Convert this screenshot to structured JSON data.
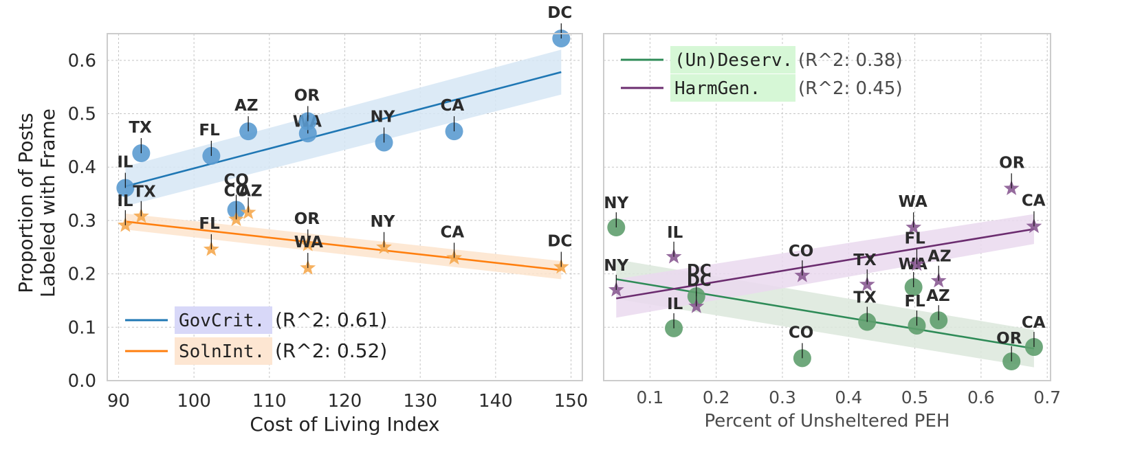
{
  "chart_data": [
    {
      "type": "scatter",
      "xlabel": "Cost of Living Index",
      "ylabel": "Proportion of Posts\nLabeled with Frame",
      "xlim": [
        88.5,
        151.5
      ],
      "ylim": [
        0.0,
        0.65
      ],
      "xticks": [
        "90",
        "100",
        "110",
        "120",
        "130",
        "140",
        "150"
      ],
      "yticks": [
        "0.0",
        "0.1",
        "0.2",
        "0.3",
        "0.4",
        "0.5",
        "0.6"
      ],
      "grid": true,
      "legend_position": "lower-left",
      "series": [
        {
          "name": "GovCrit.",
          "r2": "(R^2: 0.61)",
          "marker": "circle",
          "color": "#1f77b4",
          "point_color": "#5b9bd0",
          "band_color": "#d6e6f4",
          "label_bg": "#d8d8f8",
          "points": [
            {
              "label": "IL",
              "x": 90.9,
              "y": 0.361
            },
            {
              "label": "TX",
              "x": 93.0,
              "y": 0.426
            },
            {
              "label": "FL",
              "x": 102.3,
              "y": 0.421
            },
            {
              "label": "CO",
              "x": 105.6,
              "y": 0.32
            },
            {
              "label": "AZ",
              "x": 107.2,
              "y": 0.467
            },
            {
              "label": "WA",
              "x": 115.1,
              "y": 0.463
            },
            {
              "label": "OR",
              "x": 115.1,
              "y": 0.486
            },
            {
              "label": "NY",
              "x": 125.2,
              "y": 0.446
            },
            {
              "label": "CA",
              "x": 134.5,
              "y": 0.467
            },
            {
              "label": "DC",
              "x": 148.7,
              "y": 0.641
            }
          ],
          "fit": {
            "x": [
              90.9,
              148.7
            ],
            "y": [
              0.364,
              0.578
            ]
          },
          "band_lower": [
            0.327,
            0.536
          ],
          "band_upper": [
            0.401,
            0.62
          ]
        },
        {
          "name": "SolnInt.",
          "r2": "(R^2: 0.52)",
          "marker": "star",
          "color": "#ff7f0e",
          "point_color": "#f5a94f",
          "band_color": "#fde4cc",
          "label_bg": "#fde6d2",
          "points": [
            {
              "label": "IL",
              "x": 90.9,
              "y": 0.291
            },
            {
              "label": "TX",
              "x": 93.0,
              "y": 0.308
            },
            {
              "label": "FL",
              "x": 102.3,
              "y": 0.246
            },
            {
              "label": "CO",
              "x": 105.6,
              "y": 0.302
            },
            {
              "label": "AZ",
              "x": 107.2,
              "y": 0.315
            },
            {
              "label": "OR",
              "x": 115.1,
              "y": 0.255
            },
            {
              "label": "WA",
              "x": 115.1,
              "y": 0.211
            },
            {
              "label": "NY",
              "x": 125.2,
              "y": 0.25
            },
            {
              "label": "CA",
              "x": 134.5,
              "y": 0.23
            },
            {
              "label": "DC",
              "x": 148.7,
              "y": 0.213
            }
          ],
          "fit": {
            "x": [
              90.9,
              148.7
            ],
            "y": [
              0.298,
              0.207
            ]
          },
          "band_lower": [
            0.283,
            0.19
          ],
          "band_upper": [
            0.313,
            0.224
          ]
        }
      ]
    },
    {
      "type": "scatter",
      "xlabel": "Percent of Unsheltered PEH",
      "ylabel": "",
      "xlim": [
        0.03,
        0.705
      ],
      "ylim": [
        0.0,
        0.65
      ],
      "xticks": [
        "0.1",
        "0.2",
        "0.3",
        "0.4",
        "0.5",
        "0.6",
        "0.7"
      ],
      "grid": true,
      "legend_position": "upper-left",
      "series": [
        {
          "name": "(Un)Deserv.",
          "r2": "(R^2: 0.38)",
          "marker": "circle",
          "color": "#2e8b57",
          "point_color": "#5f9e6e",
          "band_color": "#dce8dc",
          "label_bg": "#d6f7d6",
          "points": [
            {
              "label": "NY",
              "x": 0.049,
              "y": 0.287
            },
            {
              "label": "IL",
              "x": 0.136,
              "y": 0.098
            },
            {
              "label": "DC",
              "x": 0.17,
              "y": 0.158
            },
            {
              "label": "CO",
              "x": 0.33,
              "y": 0.042
            },
            {
              "label": "TX",
              "x": 0.428,
              "y": 0.11
            },
            {
              "label": "WA",
              "x": 0.498,
              "y": 0.175
            },
            {
              "label": "FL",
              "x": 0.503,
              "y": 0.103
            },
            {
              "label": "AZ",
              "x": 0.536,
              "y": 0.113
            },
            {
              "label": "OR",
              "x": 0.646,
              "y": 0.036
            },
            {
              "label": "CA",
              "x": 0.68,
              "y": 0.063
            }
          ],
          "fit": {
            "x": [
              0.049,
              0.68
            ],
            "y": [
              0.19,
              0.06
            ]
          },
          "band_lower": [
            0.153,
            0.025
          ],
          "band_upper": [
            0.227,
            0.095
          ]
        },
        {
          "name": "HarmGen.",
          "r2": "(R^2: 0.45)",
          "marker": "star",
          "color": "#6b2c6f",
          "point_color": "#8a5a92",
          "band_color": "#ead9ee",
          "label_bg": "#d6f7d6",
          "points": [
            {
              "label": "NY",
              "x": 0.049,
              "y": 0.17
            },
            {
              "label": "IL",
              "x": 0.136,
              "y": 0.232
            },
            {
              "label": "DC",
              "x": 0.17,
              "y": 0.139
            },
            {
              "label": "CO",
              "x": 0.33,
              "y": 0.197
            },
            {
              "label": "TX",
              "x": 0.428,
              "y": 0.18
            },
            {
              "label": "WA",
              "x": 0.498,
              "y": 0.287
            },
            {
              "label": "FL",
              "x": 0.503,
              "y": 0.218
            },
            {
              "label": "AZ",
              "x": 0.536,
              "y": 0.187
            },
            {
              "label": "OR",
              "x": 0.646,
              "y": 0.36
            },
            {
              "label": "CA",
              "x": 0.68,
              "y": 0.289
            }
          ],
          "fit": {
            "x": [
              0.049,
              0.68
            ],
            "y": [
              0.154,
              0.284
            ]
          },
          "band_lower": [
            0.118,
            0.256
          ],
          "band_upper": [
            0.19,
            0.312
          ]
        }
      ]
    }
  ]
}
